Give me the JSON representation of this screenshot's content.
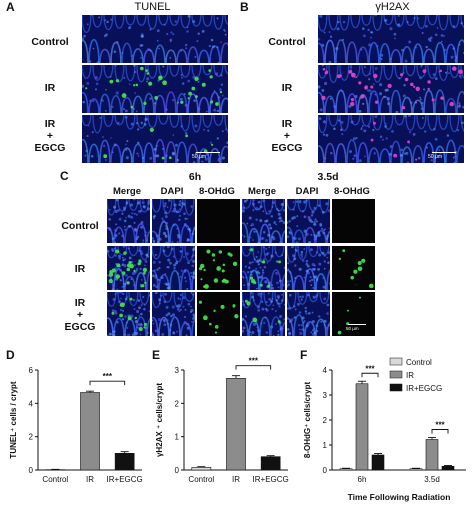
{
  "panel_letters": {
    "A": "A",
    "B": "B",
    "C": "C",
    "D": "D",
    "E": "E",
    "F": "F"
  },
  "panel_a": {
    "title": "TUNEL",
    "scale_bar": "50 µm"
  },
  "panel_b": {
    "title": "γH2AX",
    "scale_bar": "50 µm"
  },
  "rows_ab": [
    {
      "line1": "Control",
      "line2": "",
      "line3": ""
    },
    {
      "line1": "IR",
      "line2": "",
      "line3": ""
    },
    {
      "line1": "IR",
      "line2": "+",
      "line3": "EGCG"
    }
  ],
  "panel_c": {
    "time_left": "6h",
    "time_right": "3.5d",
    "subheaders": [
      "Merge",
      "DAPI",
      "8-OHdG",
      "Merge",
      "DAPI",
      "8-OHdG"
    ],
    "scale_bar": "50 µm",
    "rows": [
      {
        "line1": "Control",
        "line2": "",
        "line3": ""
      },
      {
        "line1": "IR",
        "line2": "",
        "line3": ""
      },
      {
        "line1": "IR",
        "line2": "+",
        "line3": "EGCG"
      }
    ]
  },
  "colors": {
    "control": "#d9d9d9",
    "ir": "#8c8c8c",
    "egcg": "#111111"
  },
  "chart_data": [
    {
      "type": "bar",
      "categories": [
        "Control",
        "IR",
        "IR+EGCG"
      ],
      "values": [
        0.02,
        4.65,
        1.0
      ],
      "errors": [
        0.02,
        0.08,
        0.1
      ],
      "ylabel": "TUNEL⁺ cells / crypt",
      "ylim": [
        0,
        6
      ],
      "yticks": [
        "0",
        "2",
        "4",
        "6"
      ],
      "significance": "***"
    },
    {
      "type": "bar",
      "categories": [
        "Control",
        "IR",
        "IR+EGCG"
      ],
      "values": [
        0.08,
        2.75,
        0.4
      ],
      "errors": [
        0.02,
        0.08,
        0.03
      ],
      "ylabel": "γH2AX ⁺ cells/crypt",
      "ylim": [
        0,
        3
      ],
      "yticks": [
        "0",
        "1",
        "2",
        "3"
      ],
      "significance": "***"
    },
    {
      "type": "bar",
      "categories": [
        "6h",
        "3.5d"
      ],
      "series": [
        {
          "name": "Control",
          "values": [
            0.05,
            0.05
          ],
          "errors": [
            0.02,
            0.02
          ]
        },
        {
          "name": "IR",
          "values": [
            3.45,
            1.22
          ],
          "errors": [
            0.1,
            0.08
          ]
        },
        {
          "name": "IR+EGCG",
          "values": [
            0.6,
            0.15
          ],
          "errors": [
            0.06,
            0.03
          ]
        }
      ],
      "ylabel": "8-OHdG⁺ cells/crypt",
      "xlabel": "Time Following Radiation",
      "ylim": [
        0,
        4
      ],
      "yticks": [
        "0",
        "1",
        "2",
        "3",
        "4"
      ],
      "significance": [
        "***",
        "***"
      ],
      "legend": "top-right"
    }
  ]
}
